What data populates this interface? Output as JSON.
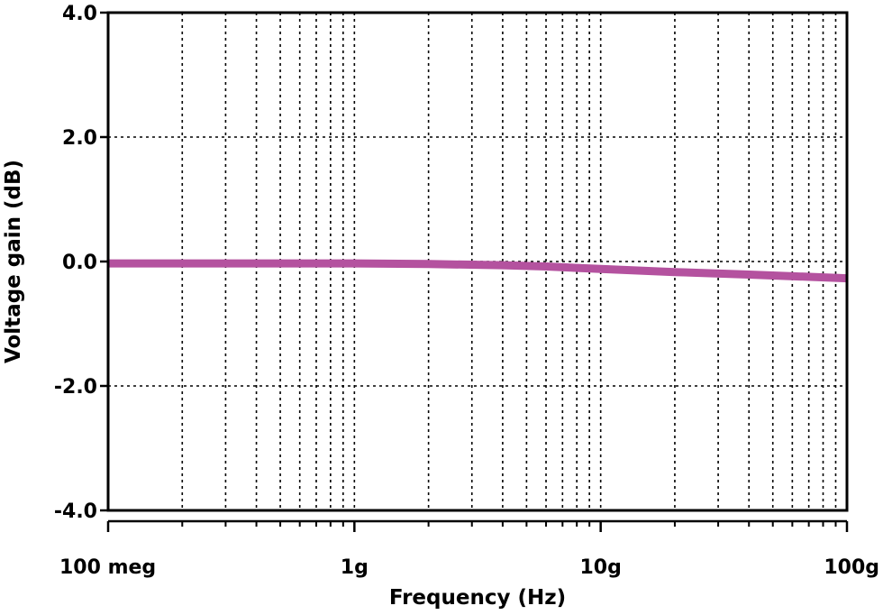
{
  "chart_data": {
    "type": "line",
    "xlabel": "Frequency (Hz)",
    "ylabel": "Voltage gain (dB)",
    "x_scale": "log",
    "xlim": [
      100000000,
      100000000000
    ],
    "ylim": [
      -4.0,
      4.0
    ],
    "x_ticks": [
      {
        "value": 100000000,
        "label": "100 meg"
      },
      {
        "value": 1000000000,
        "label": "1g"
      },
      {
        "value": 10000000000,
        "label": "10g"
      },
      {
        "value": 100000000000,
        "label": "100g"
      }
    ],
    "y_ticks": [
      {
        "value": 4.0,
        "label": "4.0"
      },
      {
        "value": 2.0,
        "label": "2.0"
      },
      {
        "value": 0.0,
        "label": "0.0"
      },
      {
        "value": -2.0,
        "label": "-2.0"
      },
      {
        "value": -4.0,
        "label": "-4.0"
      }
    ],
    "grid": true,
    "series": [
      {
        "color": "#b4529f",
        "x": [
          100000000,
          200000000,
          500000000,
          1000000000,
          2000000000,
          4000000000,
          6000000000,
          10000000000,
          20000000000,
          40000000000,
          100000000000
        ],
        "y": [
          -0.03,
          -0.03,
          -0.03,
          -0.03,
          -0.04,
          -0.06,
          -0.08,
          -0.12,
          -0.17,
          -0.21,
          -0.27
        ]
      }
    ]
  }
}
